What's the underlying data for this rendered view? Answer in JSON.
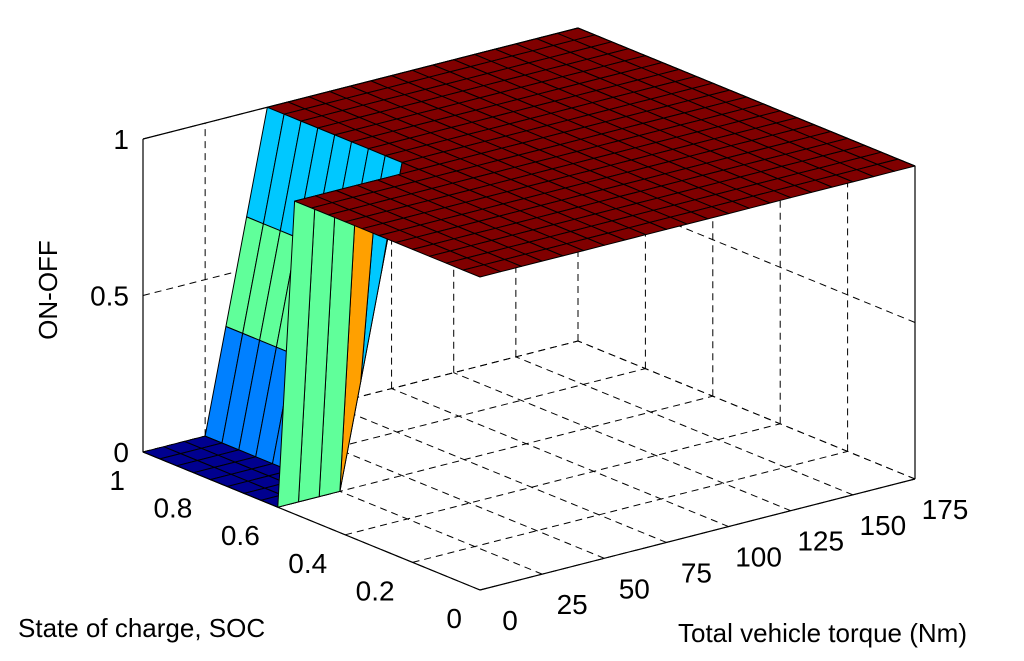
{
  "chart_data": {
    "type": "surface",
    "title": "",
    "xlabel": "Total vehicle torque (Nm)",
    "ylabel": "State of charge, SOC",
    "zlabel": "ON-OFF",
    "x_ticks": [
      "0",
      "25",
      "50",
      "75",
      "100",
      "125",
      "150",
      "175"
    ],
    "y_ticks": [
      "0",
      "0.2",
      "0.4",
      "0.6",
      "0.8",
      "1"
    ],
    "z_ticks": [
      "0",
      "0.5",
      "1"
    ],
    "xlim": [
      0,
      175
    ],
    "ylim": [
      0,
      1
    ],
    "zlim": [
      0,
      1
    ],
    "grid": true,
    "colormap": "jet",
    "description_of_values": "ON-OFF is 0 where SOC is high (>= 0.6) and torque is low (0-25 Nm); it rises to 1 across a transition band near SOC 0.6 and torque 25-50 Nm, and equals 1 elsewhere.",
    "colors": {
      "low": "#00008f",
      "mid_blue": "#0080ff",
      "cyan": "#00c8ff",
      "green": "#60ff9a",
      "orange": "#ffa000",
      "high": "#800000"
    }
  }
}
